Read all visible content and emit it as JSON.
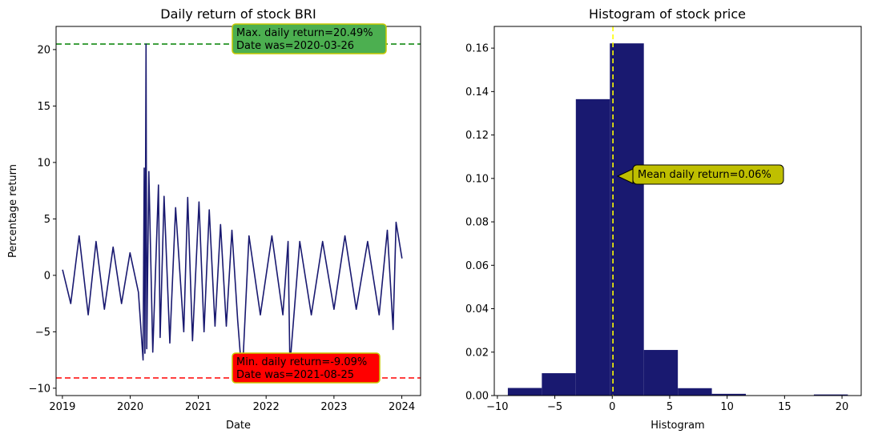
{
  "chart_data": [
    {
      "type": "line",
      "title": "Daily return of stock BRI",
      "xlabel": "Date",
      "ylabel": "Percentage return",
      "xlim": [
        "2018-11-28",
        "2024-04-11"
      ],
      "ylim": [
        -10.65,
        22.05
      ],
      "x_ticks": [
        "2019",
        "2020",
        "2021",
        "2022",
        "2023",
        "2024"
      ],
      "y_ticks": [
        -10,
        -5,
        0,
        5,
        10,
        15,
        20
      ],
      "line_color": "#191970",
      "grid": false,
      "series": [
        {
          "x": [
            "2019-01-02",
            "2019-02-15",
            "2019-04-01",
            "2019-05-20",
            "2019-07-01",
            "2019-08-15",
            "2019-10-01",
            "2019-11-15",
            "2019-12-31",
            "2020-02-14",
            "2020-03-10",
            "2020-03-16",
            "2020-03-20",
            "2020-03-26",
            "2020-03-30",
            "2020-04-10",
            "2020-05-01",
            "2020-06-01",
            "2020-06-10",
            "2020-07-01",
            "2020-08-01",
            "2020-09-01",
            "2020-10-15",
            "2020-11-05",
            "2020-12-01",
            "2021-01-05",
            "2021-02-01",
            "2021-03-01",
            "2021-04-01",
            "2021-05-01",
            "2021-06-01",
            "2021-07-01",
            "2021-08-01",
            "2021-08-25",
            "2021-10-01",
            "2021-12-01",
            "2022-02-01",
            "2022-04-01",
            "2022-04-29",
            "2022-05-09",
            "2022-07-01",
            "2022-09-01",
            "2022-11-01",
            "2023-01-01",
            "2023-03-01",
            "2023-05-01",
            "2023-07-01",
            "2023-09-01",
            "2023-10-15",
            "2023-11-15",
            "2023-12-01",
            "2024-01-02"
          ],
          "y": [
            0.5,
            -2.5,
            3.5,
            -3.5,
            3.0,
            -3.0,
            2.5,
            -2.5,
            2.0,
            -1.5,
            -7.5,
            9.5,
            -6.9,
            20.49,
            -6.5,
            9.2,
            -6.8,
            8.0,
            -5.5,
            7.0,
            -6.0,
            6.0,
            -5.0,
            6.9,
            -5.8,
            6.5,
            -5.0,
            5.8,
            -4.5,
            4.5,
            -4.5,
            4.0,
            -4.0,
            -9.09,
            3.5,
            -3.5,
            3.5,
            -3.5,
            3.0,
            -8.0,
            3.0,
            -3.5,
            3.0,
            -3.0,
            3.5,
            -3.0,
            3.0,
            -3.5,
            4.0,
            -4.8,
            4.7,
            1.5
          ]
        }
      ],
      "reference_lines": [
        {
          "y": 20.49,
          "color": "#008000",
          "style": "dashed"
        },
        {
          "y": -9.09,
          "color": "#ff0000",
          "style": "dashed"
        }
      ],
      "annotations": [
        {
          "text": [
            "Max. daily return=20.49%",
            "Date was=2020-03-26"
          ],
          "box_color": "#4caf50",
          "edge_color": "#c8c800"
        },
        {
          "text": [
            "Min. daily return=-9.09%",
            "Date was=2021-08-25"
          ],
          "box_color": "#ff0000",
          "edge_color": "#c8c800"
        }
      ]
    },
    {
      "type": "bar",
      "title": "Histogram of stock price",
      "xlabel": "Histogram",
      "ylabel": "",
      "xlim": [
        -10.27,
        21.67
      ],
      "ylim": [
        0,
        0.17
      ],
      "x_ticks": [
        -10,
        -5,
        0,
        5,
        10,
        15,
        20
      ],
      "y_ticks": [
        "0.00",
        "0.02",
        "0.04",
        "0.06",
        "0.08",
        "0.10",
        "0.12",
        "0.14",
        "0.16"
      ],
      "bar_color": "#191970",
      "grid": false,
      "bin_edges": [
        -9.09,
        -6.13,
        -3.17,
        -0.21,
        2.75,
        5.71,
        8.67,
        11.63,
        14.59,
        17.55,
        20.51
      ],
      "values": [
        0.0035,
        0.0103,
        0.1365,
        0.1622,
        0.021,
        0.0034,
        0.0008,
        0.0,
        0.0,
        0.0005
      ],
      "reference_lines": [
        {
          "x": 0.06,
          "color": "#ffff00",
          "style": "dashed"
        }
      ],
      "annotations": [
        {
          "text": "Mean daily return=0.06%",
          "arrow_to": [
            0.06,
            0.1
          ],
          "box_color": "#bfbf00",
          "edge_color": "#000000"
        }
      ]
    }
  ]
}
